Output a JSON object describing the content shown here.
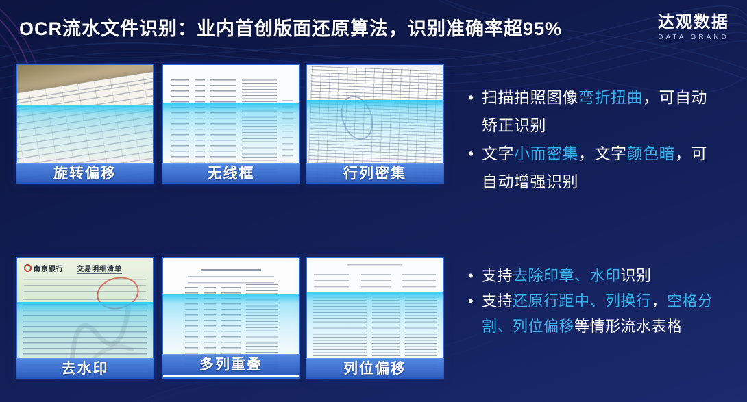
{
  "slide": {
    "title": "OCR流水文件识别：业内首创版面还原算法，识别准确率超95%",
    "logo": {
      "name": "达观数据",
      "subtitle": "DATA GRAND"
    }
  },
  "colors": {
    "background_navy": "#101b4e",
    "accent_cyan": "#38b2ec",
    "label_bar_blue": "#2a63c8",
    "scan_band_cyan": "#2ed3f5",
    "stamp_red": "#c23a30"
  },
  "thumbnails": [
    {
      "label": "旋转偏移"
    },
    {
      "label": "无线框"
    },
    {
      "label": "行列密集"
    },
    {
      "label": "去水印",
      "bank_name": "南京银行",
      "doc_title": "交易明细清单"
    },
    {
      "label": "多列重叠"
    },
    {
      "label": "列位偏移"
    }
  ],
  "feature_groups": [
    {
      "bullets": [
        {
          "segments": [
            {
              "t": "扫描拍照图像"
            },
            {
              "t": "弯折扭曲",
              "hl": true
            },
            {
              "t": "，可自动矫正识别"
            }
          ]
        },
        {
          "segments": [
            {
              "t": "文字"
            },
            {
              "t": "小而密集",
              "hl": true
            },
            {
              "t": "，文字"
            },
            {
              "t": "颜色暗",
              "hl": true
            },
            {
              "t": "，可自动增强识别"
            }
          ]
        }
      ]
    },
    {
      "bullets": [
        {
          "segments": [
            {
              "t": "支持"
            },
            {
              "t": "去除印章、水印",
              "hl": true
            },
            {
              "t": "识别"
            }
          ]
        },
        {
          "segments": [
            {
              "t": "支持"
            },
            {
              "t": "还原行距中、列换行",
              "hl": true
            },
            {
              "t": "，"
            },
            {
              "t": "空格分割、列位偏移",
              "hl": true
            },
            {
              "t": "等情形流水表格"
            }
          ]
        }
      ]
    }
  ]
}
